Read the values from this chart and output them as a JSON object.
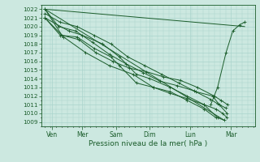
{
  "bg_color": "#cce8e0",
  "grid_color": "#aad4cc",
  "line_color": "#1a5c2a",
  "marker_color": "#1a5c2a",
  "yticks": [
    1009,
    1010,
    1011,
    1012,
    1013,
    1014,
    1015,
    1016,
    1017,
    1018,
    1019,
    1020,
    1021,
    1022
  ],
  "ymin": 1008.5,
  "ymax": 1022.5,
  "xlabel": "Pression niveau de la mer( hPa )",
  "xlabel_color": "#1a5c2a",
  "xtick_labels": [
    "Ven",
    "Mer",
    "Sam",
    "Dim",
    "Lun",
    "Mar"
  ],
  "xmin": -0.1,
  "xmax": 6.2,
  "xtick_positions": [
    0.2,
    1.1,
    2.1,
    3.1,
    4.3,
    5.5
  ],
  "lines_with_markers": [
    {
      "x": [
        0.0,
        0.5,
        1.0,
        1.5,
        2.0,
        2.5,
        3.0,
        3.5,
        4.0,
        4.5,
        5.0,
        5.2,
        5.4
      ],
      "y": [
        1022,
        1019,
        1018.5,
        1017,
        1016,
        1015.2,
        1014.8,
        1014.2,
        1013.8,
        1013.0,
        1012.0,
        1011.5,
        1011.0
      ]
    },
    {
      "x": [
        0.0,
        0.4,
        0.9,
        1.4,
        1.9,
        2.4,
        2.9,
        3.4,
        3.9,
        4.4,
        4.9,
        5.1,
        5.35
      ],
      "y": [
        1022,
        1020,
        1019.5,
        1018.2,
        1016.8,
        1015.7,
        1014.7,
        1013.7,
        1013.2,
        1012.6,
        1011.6,
        1011.1,
        1010.6
      ]
    },
    {
      "x": [
        0.0,
        0.45,
        0.95,
        1.45,
        1.95,
        2.45,
        2.95,
        3.45,
        3.95,
        4.45,
        4.95,
        5.15,
        5.38
      ],
      "y": [
        1021.5,
        1020.5,
        1020,
        1019,
        1018,
        1016.5,
        1015.5,
        1014.5,
        1013.5,
        1012.5,
        1012.0,
        1011.0,
        1010.0
      ]
    },
    {
      "x": [
        0.0,
        0.7,
        1.1,
        1.7,
        2.2,
        2.7,
        3.1,
        3.7,
        4.2,
        4.7,
        5.1,
        5.3
      ],
      "y": [
        1021,
        1019.5,
        1019,
        1018,
        1016.5,
        1014.5,
        1014,
        1013,
        1012,
        1011,
        1009.5,
        1009.2
      ]
    },
    {
      "x": [
        0.0,
        0.45,
        0.95,
        1.45,
        1.95,
        2.2,
        2.7,
        3.2,
        3.7,
        4.2,
        4.7,
        5.05
      ],
      "y": [
        1021,
        1019,
        1018.8,
        1017.5,
        1016.5,
        1015.5,
        1013.5,
        1013,
        1012.5,
        1011.5,
        1010.5,
        1009.5
      ]
    },
    {
      "x": [
        0.0,
        0.55,
        1.2,
        1.9,
        2.6,
        3.2,
        3.7,
        4.2,
        4.7,
        5.05,
        5.25,
        5.38
      ],
      "y": [
        1021,
        1018.8,
        1017,
        1015.5,
        1014.5,
        1013,
        1012.3,
        1011.7,
        1011,
        1010.5,
        1010,
        1009.5
      ]
    },
    {
      "x": [
        4.9,
        5.1,
        5.35,
        5.55,
        5.75,
        5.9
      ],
      "y": [
        1011,
        1013,
        1017,
        1019.5,
        1020.2,
        1020.5
      ]
    }
  ],
  "lines_no_markers": [
    {
      "x": [
        0.0,
        5.9
      ],
      "y": [
        1022,
        1020.0
      ]
    },
    {
      "x": [
        0.0,
        5.3
      ],
      "y": [
        1022,
        1009.2
      ]
    }
  ],
  "minor_x_per_major": 6
}
